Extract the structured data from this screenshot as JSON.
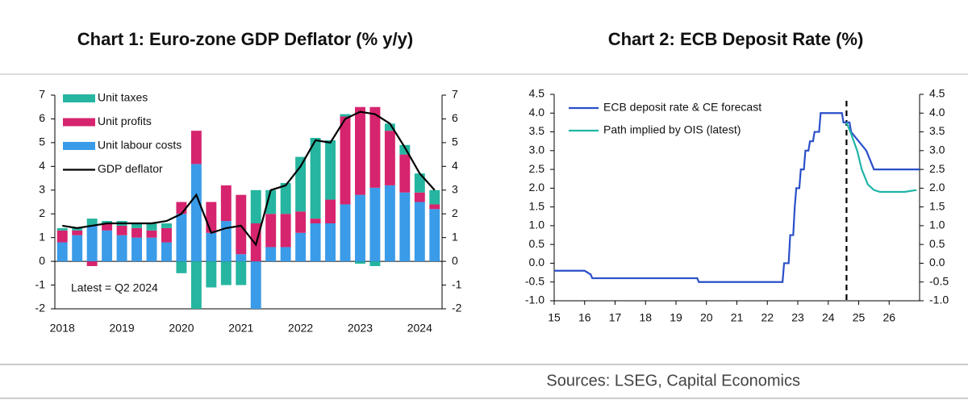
{
  "chart_data": [
    {
      "type": "bar",
      "stacked": true,
      "title": "Chart 1: Euro-zone GDP Deflator (% y/y)",
      "categories": [
        "2018",
        null,
        null,
        null,
        "2019",
        null,
        null,
        null,
        "2020",
        null,
        null,
        null,
        "2021",
        null,
        null,
        null,
        "2022",
        null,
        null,
        null,
        "2023",
        null,
        null,
        null,
        "2024",
        null
      ],
      "series": [
        {
          "name": "Unit labour costs",
          "color": "#3a9be8",
          "values": [
            0.8,
            1.1,
            1.5,
            1.3,
            1.1,
            1.0,
            1.0,
            0.8,
            2.0,
            4.1,
            1.2,
            1.7,
            0.3,
            -2.0,
            0.6,
            0.6,
            1.2,
            1.6,
            1.6,
            2.4,
            2.8,
            3.1,
            3.2,
            2.9,
            2.5,
            2.2
          ]
        },
        {
          "name": "Unit profits",
          "color": "#d6246e",
          "values": [
            0.5,
            0.2,
            -0.2,
            0.3,
            0.4,
            0.4,
            0.3,
            0.6,
            0.5,
            1.4,
            1.3,
            1.5,
            2.5,
            1.6,
            1.4,
            1.4,
            0.9,
            0.2,
            1.0,
            3.7,
            3.7,
            3.4,
            2.3,
            1.6,
            0.4,
            0.2
          ]
        },
        {
          "name": "Unit taxes",
          "color": "#26b5a0",
          "values": [
            0.1,
            0.1,
            0.3,
            0.1,
            0.2,
            0.2,
            0.3,
            0.2,
            -0.5,
            -2.0,
            -1.1,
            -1.0,
            -1.0,
            1.4,
            1.0,
            1.3,
            2.3,
            3.4,
            2.5,
            0.1,
            -0.1,
            -0.2,
            0.3,
            0.4,
            0.8,
            0.6
          ]
        },
        {
          "name": "GDP deflator",
          "type": "line",
          "color": "#000000",
          "values": [
            1.5,
            1.4,
            1.5,
            1.6,
            1.6,
            1.6,
            1.6,
            1.7,
            2.0,
            2.8,
            1.2,
            1.4,
            1.5,
            0.7,
            3.0,
            3.2,
            4.0,
            5.1,
            5.0,
            6.0,
            6.3,
            6.2,
            5.8,
            4.8,
            3.7,
            3.0
          ]
        }
      ],
      "ylim": [
        -2,
        7
      ],
      "yticks": [
        -2,
        -1,
        0,
        1,
        2,
        3,
        4,
        5,
        6,
        7
      ],
      "y2lim": [
        -2,
        7
      ],
      "y2ticks": [
        -2,
        -1,
        0,
        1,
        2,
        3,
        4,
        5,
        6,
        7
      ],
      "zero_line": true,
      "annotation": "Latest = Q2 2024",
      "legend": "upper left"
    },
    {
      "type": "line",
      "title": "Chart 2: ECB Deposit Rate (%)",
      "series": [
        {
          "name": "ECB deposit rate & CE forecast",
          "color": "#2a4fc9",
          "x": [
            15,
            16,
            16.2,
            16.25,
            19.7,
            19.75,
            22.5,
            22.55,
            22.7,
            22.75,
            22.85,
            22.9,
            22.95,
            23.05,
            23.1,
            23.2,
            23.25,
            23.35,
            23.4,
            23.5,
            23.55,
            23.7,
            23.75,
            24.45,
            24.5,
            24.7,
            24.75,
            25.0,
            25.25,
            25.5,
            27
          ],
          "values": [
            -0.2,
            -0.2,
            -0.3,
            -0.4,
            -0.4,
            -0.5,
            -0.5,
            0.0,
            0.0,
            0.75,
            0.75,
            1.5,
            2.0,
            2.0,
            2.5,
            2.5,
            3.0,
            3.0,
            3.25,
            3.25,
            3.5,
            3.5,
            4.0,
            4.0,
            3.75,
            3.75,
            3.5,
            3.25,
            3.0,
            2.5,
            2.5
          ]
        },
        {
          "name": "Path implied by OIS (latest)",
          "color": "#1fb5a5",
          "x": [
            24.6,
            24.75,
            24.95,
            25.1,
            25.3,
            25.5,
            25.7,
            26.5,
            26.9
          ],
          "values": [
            3.75,
            3.45,
            3.0,
            2.5,
            2.1,
            1.95,
            1.9,
            1.9,
            1.95
          ]
        }
      ],
      "xlim": [
        15,
        27
      ],
      "xticks": [
        15,
        16,
        17,
        18,
        19,
        20,
        21,
        22,
        23,
        24,
        25,
        26
      ],
      "ylim": [
        -1.0,
        4.5
      ],
      "yticks": [
        {
          "value": -1.0,
          "label": "-1.0"
        },
        {
          "value": -0.5,
          "label": "-0.5"
        },
        {
          "value": 0.0,
          "label": "0.0"
        },
        {
          "value": 0.5,
          "label": "0.5"
        },
        {
          "value": 1.0,
          "label": "1.0"
        },
        {
          "value": 1.5,
          "label": "1.5"
        },
        {
          "value": 2.0,
          "label": "2.0"
        },
        {
          "value": 2.5,
          "label": "2.5"
        },
        {
          "value": 3.0,
          "label": "3.0"
        },
        {
          "value": 3.5,
          "label": "3.5"
        },
        {
          "value": 4.0,
          "label": "4.0"
        },
        {
          "value": 4.5,
          "label": "4.5"
        }
      ],
      "y2lim": [
        -1.0,
        4.5
      ],
      "y2ticks": [
        {
          "value": -1.0,
          "label": "-1.0"
        },
        {
          "value": -0.5,
          "label": "-0.5"
        },
        {
          "value": 0.0,
          "label": "0.0"
        },
        {
          "value": 0.5,
          "label": "0.5"
        },
        {
          "value": 1.0,
          "label": "1.0"
        },
        {
          "value": 1.5,
          "label": "1.5"
        },
        {
          "value": 2.0,
          "label": "2.0"
        },
        {
          "value": 2.5,
          "label": "2.5"
        },
        {
          "value": 3.0,
          "label": "3.0"
        },
        {
          "value": 3.5,
          "label": "3.5"
        },
        {
          "value": 4.0,
          "label": "4.0"
        },
        {
          "value": 4.5,
          "label": "4.5"
        }
      ],
      "vline": 24.6,
      "legend": "upper left"
    }
  ],
  "source": "Sources: LSEG, Capital Economics"
}
